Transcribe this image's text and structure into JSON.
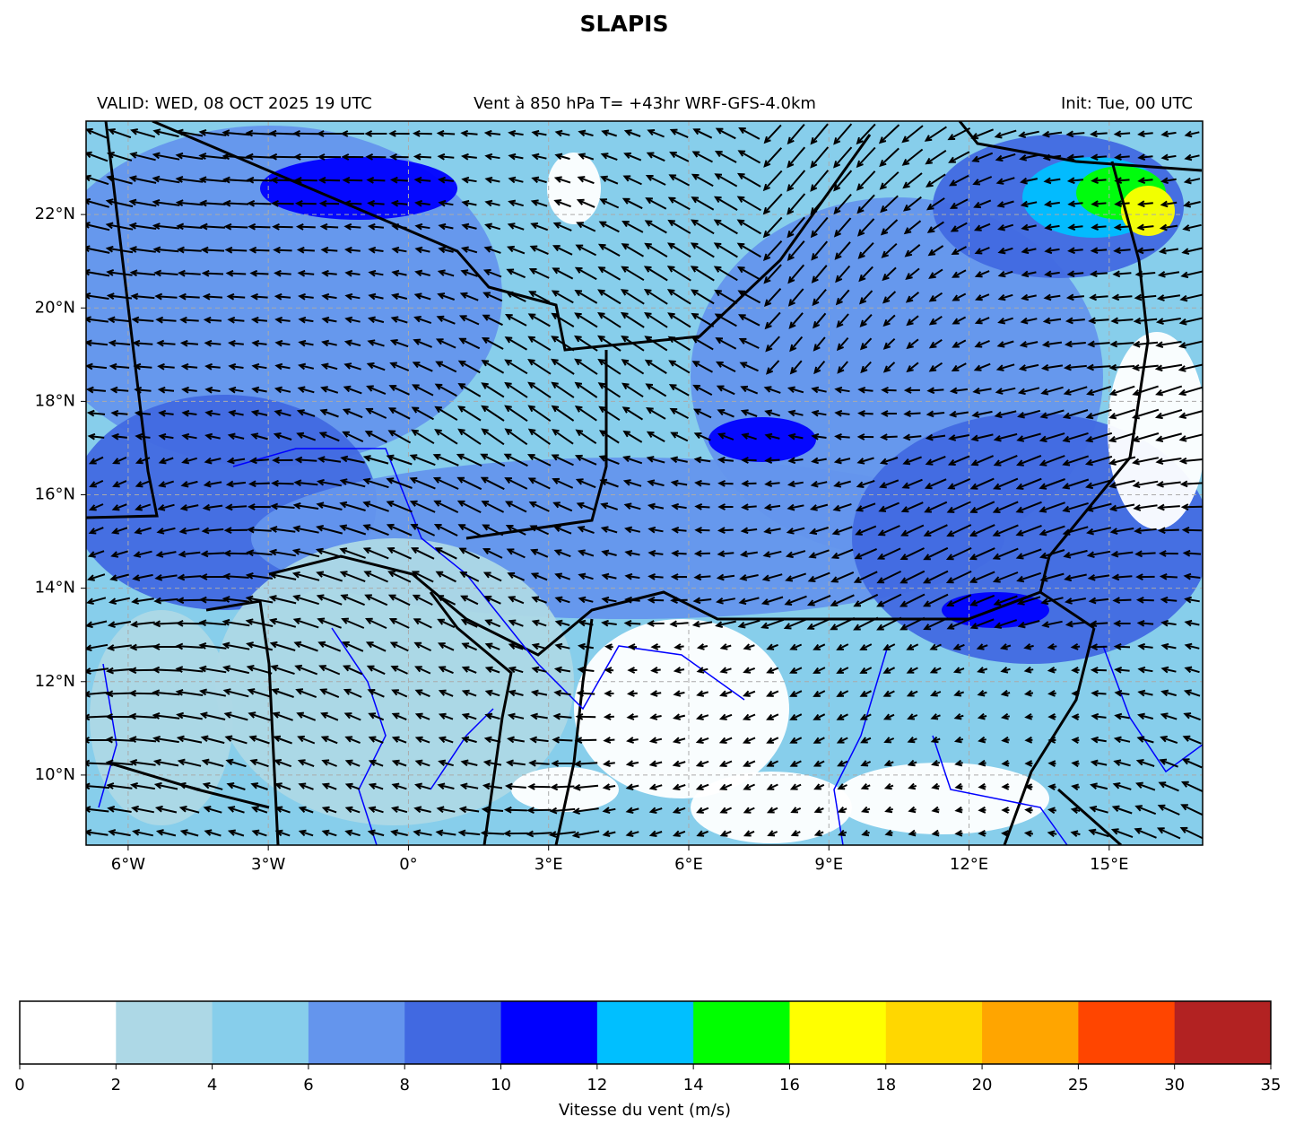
{
  "title": "SLAPIS",
  "subtitle_left": "VALID: WED, 08 OCT 2025 19 UTC",
  "subtitle_center": "Vent à 850 hPa T= +43hr  WRF-GFS-4.0km",
  "subtitle_right": "Init: Tue, 00 UTC",
  "map": {
    "xlim": [
      -6.9,
      17
    ],
    "ylim": [
      8.5,
      24
    ],
    "xticks": [
      {
        "value": -6,
        "label": "6°W"
      },
      {
        "value": -3,
        "label": "3°W"
      },
      {
        "value": 0,
        "label": "0°"
      },
      {
        "value": 3,
        "label": "3°E"
      },
      {
        "value": 6,
        "label": "6°E"
      },
      {
        "value": 9,
        "label": "9°E"
      },
      {
        "value": 12,
        "label": "12°E"
      },
      {
        "value": 15,
        "label": "15°E"
      }
    ],
    "yticks": [
      {
        "value": 10,
        "label": "10°N"
      },
      {
        "value": 12,
        "label": "12°N"
      },
      {
        "value": 14,
        "label": "14°N"
      },
      {
        "value": 16,
        "label": "16°N"
      },
      {
        "value": 18,
        "label": "18°N"
      },
      {
        "value": 20,
        "label": "20°N"
      },
      {
        "value": 22,
        "label": "22°N"
      }
    ],
    "grid": true
  },
  "colorbar": {
    "bounds": [
      0,
      2,
      4,
      6,
      8,
      10,
      12,
      14,
      16,
      18,
      20,
      25,
      30,
      35
    ],
    "colors": [
      "#ffffff",
      "#add8e6",
      "#87ceeb",
      "#6495ed",
      "#4169e1",
      "#0000ff",
      "#00bfff",
      "#00ff00",
      "#ffff00",
      "#ffd700",
      "#ffa500",
      "#ff4500",
      "#b22222"
    ],
    "label": "Vitesse du vent (m/s)"
  }
}
